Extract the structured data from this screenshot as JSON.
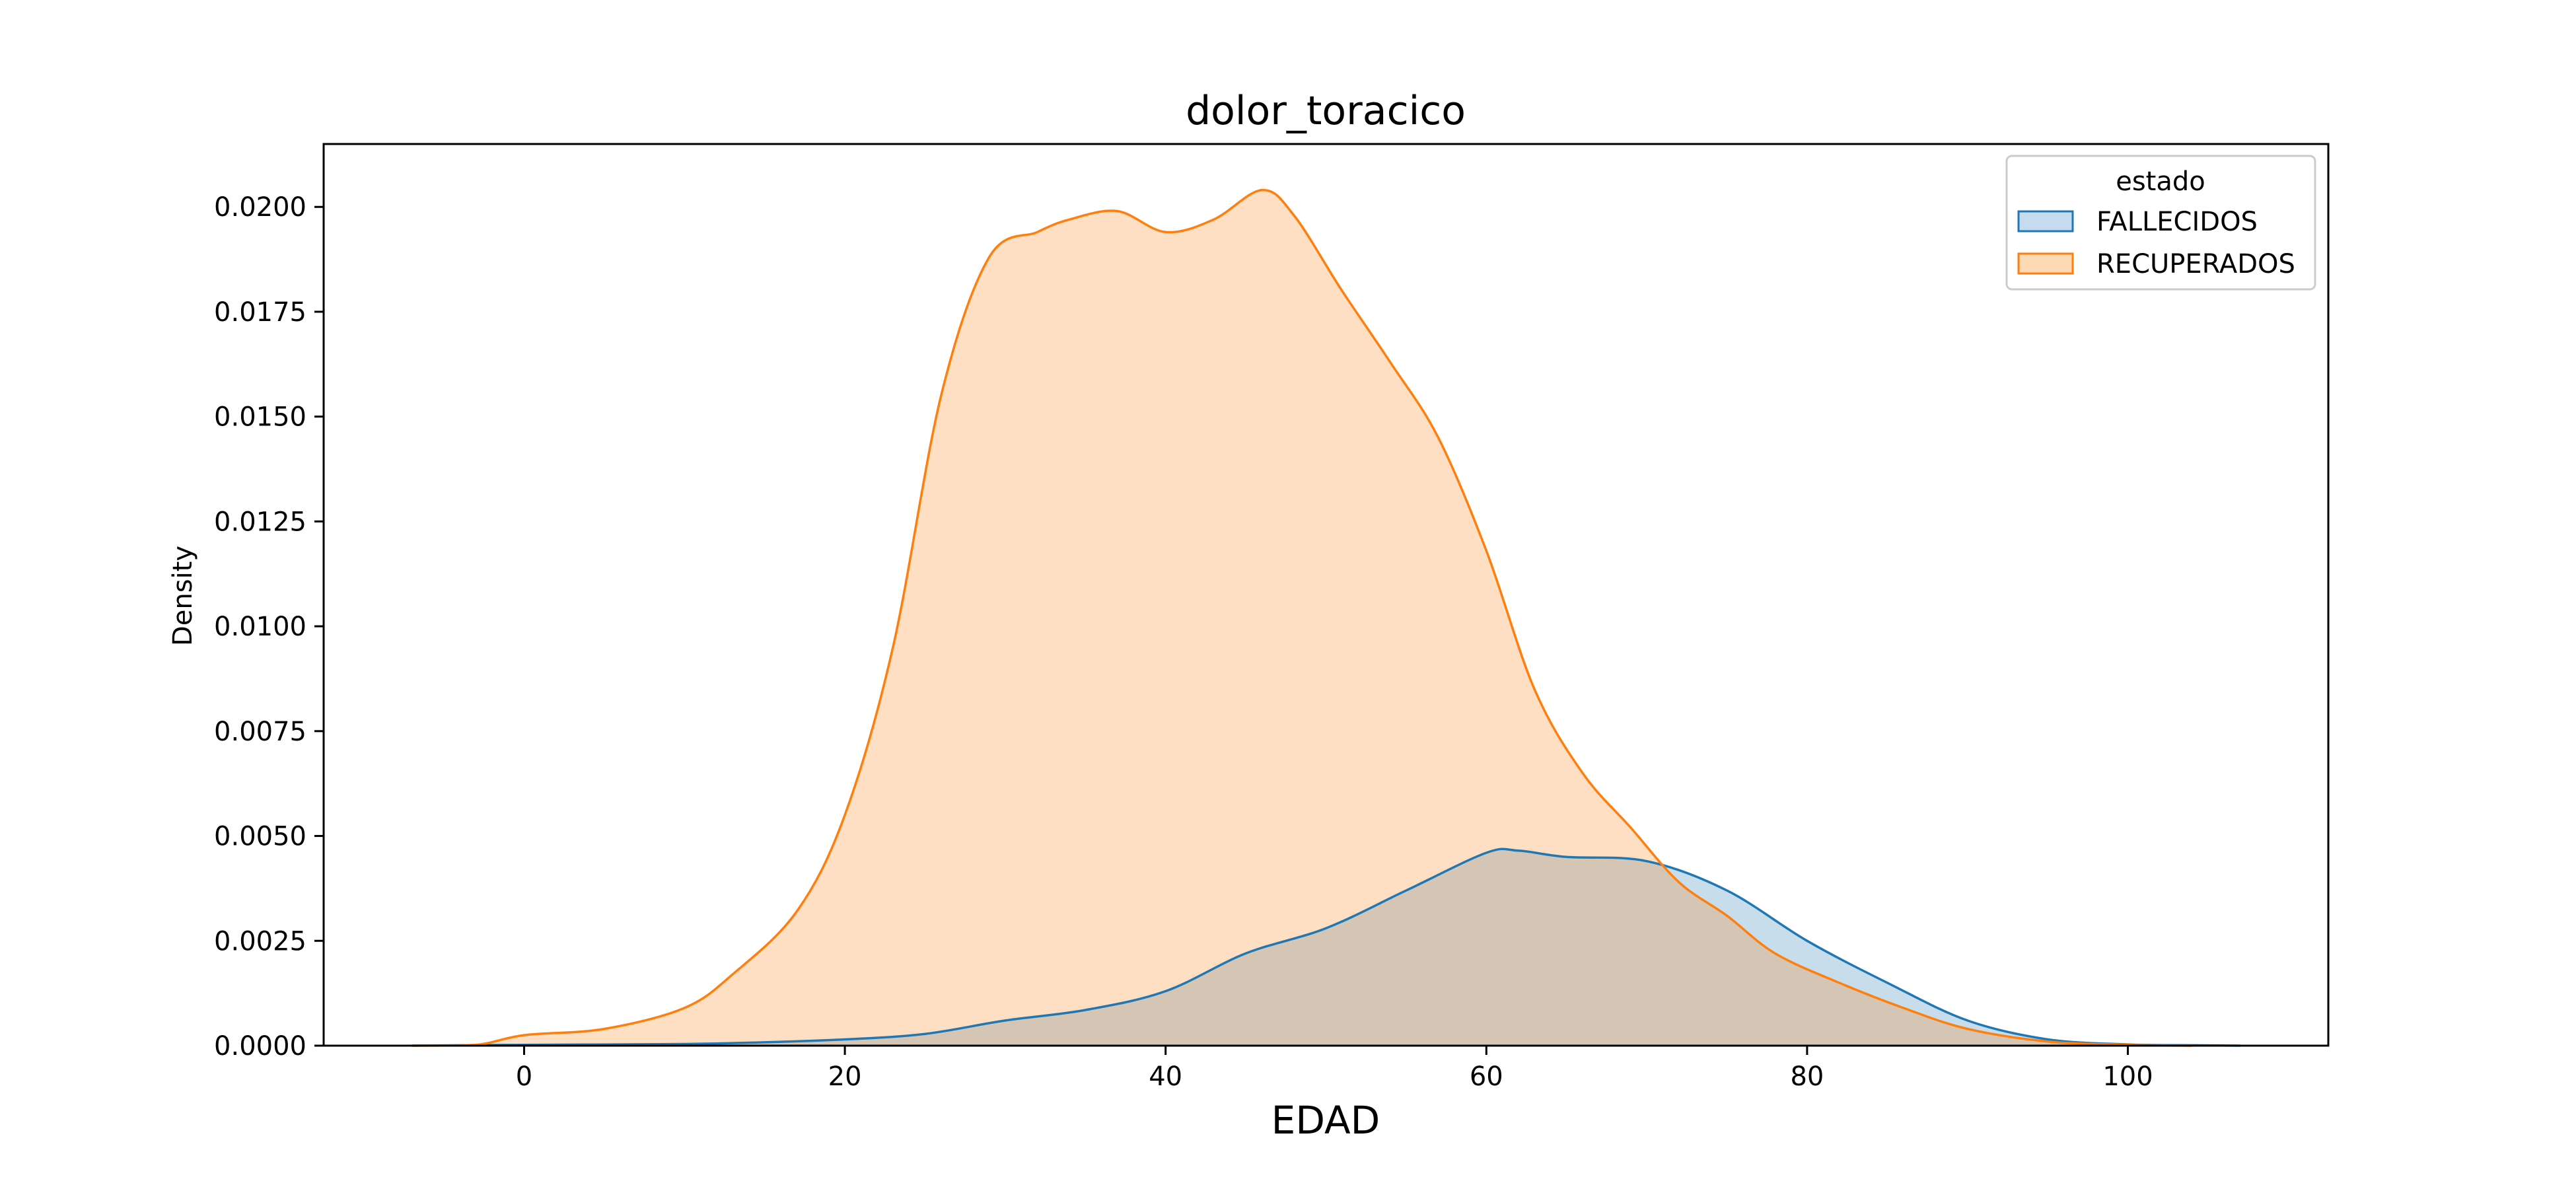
{
  "chart_data": {
    "type": "area",
    "title": "dolor_toracico",
    "xlabel": "EDAD",
    "ylabel": "Density",
    "xlim": [
      -12.5,
      112.5
    ],
    "ylim": [
      0,
      0.0215
    ],
    "xticks": [
      0,
      20,
      40,
      60,
      80,
      100
    ],
    "yticks": [
      0.0,
      0.0025,
      0.005,
      0.0075,
      0.01,
      0.0125,
      0.015,
      0.0175,
      0.02
    ],
    "ytick_labels": [
      "0.0000",
      "0.0025",
      "0.0050",
      "0.0075",
      "0.0100",
      "0.0125",
      "0.0150",
      "0.0175",
      "0.0200"
    ],
    "grid": false,
    "legend": {
      "title": "estado",
      "placement": "top-right"
    },
    "series": [
      {
        "name": "FALLECIDOS",
        "color": "#1f77b4",
        "fill": "#c6dbef",
        "x": [
          -7,
          0,
          10,
          15,
          20,
          25,
          30,
          35,
          40,
          45,
          50,
          55,
          60,
          62,
          65,
          70,
          75,
          80,
          85,
          90,
          95,
          100,
          104,
          107
        ],
        "y": [
          0,
          2e-05,
          4e-05,
          8e-05,
          0.00015,
          0.00028,
          0.0006,
          0.00085,
          0.0013,
          0.0022,
          0.0028,
          0.0037,
          0.0046,
          0.00465,
          0.0045,
          0.0044,
          0.0037,
          0.0025,
          0.0015,
          0.0006,
          0.00015,
          3e-05,
          1e-05,
          0
        ]
      },
      {
        "name": "RECUPERADOS",
        "color": "#ff7f0e",
        "fill": "#fdd9b5",
        "x": [
          -7,
          -3,
          0,
          5,
          10,
          13,
          17,
          20,
          23,
          26,
          29,
          32,
          34,
          37,
          40,
          43,
          46,
          48,
          51,
          54,
          57,
          60,
          63,
          66,
          69,
          72,
          75,
          78,
          82,
          86,
          90,
          95,
          100,
          104
        ],
        "y": [
          0,
          2e-05,
          0.00025,
          0.0004,
          0.0009,
          0.0017,
          0.0032,
          0.0055,
          0.0095,
          0.0155,
          0.0188,
          0.0194,
          0.0197,
          0.0199,
          0.0194,
          0.0197,
          0.0204,
          0.0198,
          0.018,
          0.0163,
          0.0145,
          0.0118,
          0.0085,
          0.0065,
          0.0052,
          0.0039,
          0.0031,
          0.0022,
          0.0015,
          0.0009,
          0.0004,
          0.0001,
          2e-05,
          0
        ]
      }
    ]
  }
}
